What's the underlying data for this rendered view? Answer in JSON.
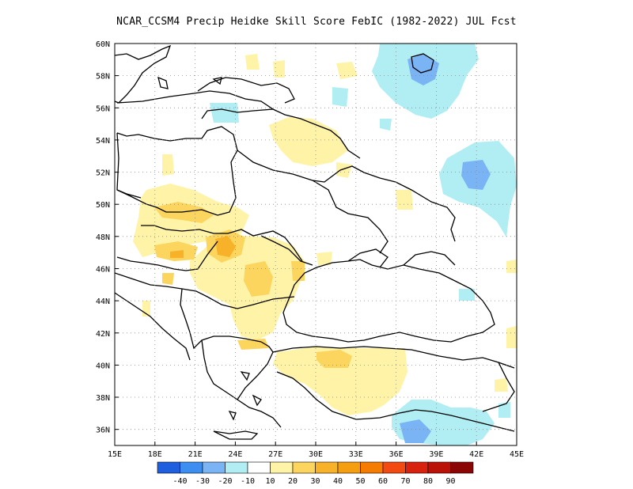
{
  "title": "NCAR_CCSM4 Precip Heidke Skill Score FebIC (1982-2022) JUL Fcst",
  "map": {
    "lon_range": [
      15,
      45
    ],
    "lat_range": [
      35,
      60
    ],
    "x_ticks": [
      "15E",
      "18E",
      "21E",
      "24E",
      "27E",
      "30E",
      "33E",
      "36E",
      "39E",
      "42E",
      "45E"
    ],
    "y_ticks": [
      "60N",
      "58N",
      "56N",
      "54N",
      "52N",
      "50N",
      "48N",
      "46N",
      "44N",
      "42N",
      "40N",
      "38N",
      "36N"
    ],
    "grid": "dotted"
  },
  "colorbar": {
    "colors": [
      "#1e5fe0",
      "#3d8ef0",
      "#7bb4f4",
      "#b0eef4",
      "#ffffff",
      "#fff3a8",
      "#fbd55e",
      "#f8b22a",
      "#f59f10",
      "#f57c00",
      "#f24a10",
      "#d8220e",
      "#bb1208",
      "#8c0505"
    ],
    "labels": [
      "-40",
      "-30",
      "-20",
      "-10",
      "10",
      "20",
      "30",
      "40",
      "50",
      "60",
      "70",
      "80",
      "90"
    ]
  }
}
